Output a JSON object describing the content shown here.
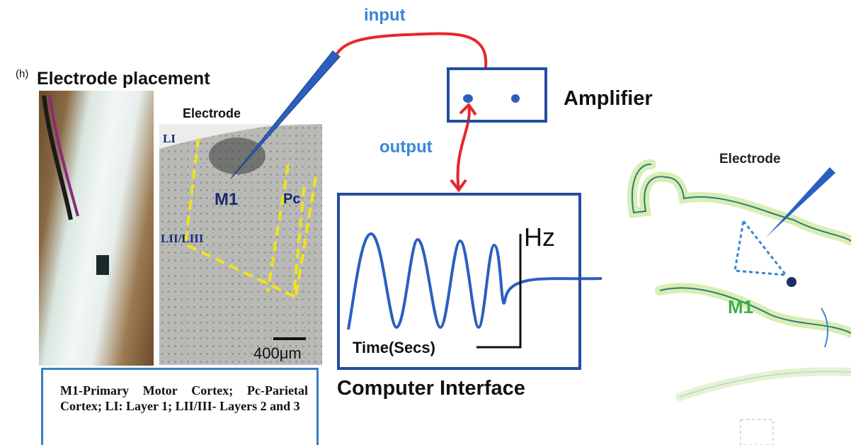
{
  "panel_label": "(h)",
  "title": "Electrode placement",
  "slice": {
    "electrode_label": "Electrode",
    "layer1": "LI",
    "layer23": "LII/LIII",
    "m1": "M1",
    "pc": "Pc",
    "scale": "400μm"
  },
  "legend": "M1-Primary Motor Cortex; Pc-Parietal Cortex; LI: Layer 1; LII/III- Layers 2 and 3",
  "signal": {
    "input": "input",
    "output": "output",
    "amplifier": "Amplifier",
    "hz": "Hz",
    "time": "Time(Secs)",
    "computer_interface": "Computer Interface"
  },
  "rat": {
    "electrode": "Electrode",
    "m1": "M1"
  },
  "colors": {
    "wire": "#e8262a",
    "electrode": "#2b5fbf",
    "box": "#244d9e",
    "label_blue": "#3a86d4",
    "m1_green": "#3ab24a",
    "guide_yellow": "#f2e21b"
  }
}
